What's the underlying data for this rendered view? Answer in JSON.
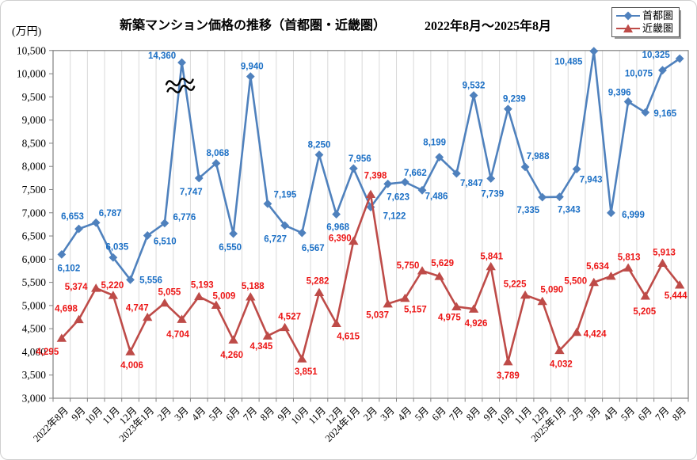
{
  "header": {
    "unit_label": "(万円)",
    "title": "新築マンション価格の推移（首都圏・近畿圏）",
    "period": "2022年8月～2025年8月"
  },
  "legend": {
    "position": "top-right",
    "items": [
      {
        "id": "shutoken",
        "label": "首都圏",
        "marker": "diamond",
        "color": "#4F81BD"
      },
      {
        "id": "kinkiken",
        "label": "近畿圏",
        "marker": "triangle",
        "color": "#BE4B48"
      }
    ]
  },
  "chart_data": {
    "type": "line",
    "title": "新築マンション価格の推移（首都圏・近畿圏）",
    "subtitle": "2022年8月～2025年8月",
    "unit": "万円",
    "categories": [
      "2022年8月",
      "9月",
      "10月",
      "11月",
      "12月",
      "2023年1月",
      "2月",
      "3月",
      "4月",
      "5月",
      "6月",
      "7月",
      "8月",
      "9月",
      "10月",
      "11月",
      "12月",
      "2024年1月",
      "2月",
      "3月",
      "4月",
      "5月",
      "6月",
      "7月",
      "8月",
      "9月",
      "10月",
      "11月",
      "12月",
      "2025年1月",
      "2月",
      "3月",
      "4月",
      "5月",
      "6月",
      "7月",
      "8月"
    ],
    "series": [
      {
        "id": "shutoken",
        "name": "首都圏",
        "marker": "diamond",
        "line_color": "#4F81BD",
        "label_color": "#1B6FC5",
        "values": [
          6102,
          6653,
          6787,
          6035,
          5556,
          6510,
          6776,
          14360,
          7747,
          8068,
          6550,
          9940,
          7195,
          6727,
          6567,
          8250,
          6968,
          7956,
          7122,
          7623,
          7662,
          7486,
          8199,
          7847,
          9532,
          7739,
          9239,
          7988,
          7335,
          7343,
          7943,
          10485,
          6999,
          9396,
          9165,
          10075,
          10325
        ]
      },
      {
        "id": "kinkiken",
        "name": "近畿圏",
        "marker": "triangle",
        "line_color": "#BE4B48",
        "label_color": "#EC1515",
        "values": [
          4295,
          4698,
          5374,
          5220,
          4006,
          4747,
          5055,
          4704,
          5193,
          5009,
          4260,
          5188,
          4345,
          4527,
          3851,
          5282,
          4615,
          6390,
          7398,
          5037,
          5157,
          5750,
          5629,
          4975,
          4926,
          5841,
          3789,
          5225,
          5090,
          4032,
          4424,
          5500,
          5634,
          5813,
          5205,
          5913,
          5444
        ]
      }
    ],
    "y_axis": {
      "min": 3000,
      "max": 10500,
      "step": 500,
      "tick_format": "#,##0"
    },
    "axis_break": {
      "series_index": 0,
      "point_index": 7,
      "true_value": 14360,
      "plotted_value": 10240,
      "symbol": "double-wavy-line"
    },
    "grid": {
      "vertical": true,
      "horizontal": false
    },
    "colors": {
      "gridline": "#d9d9d9",
      "axis": "#808080",
      "tick_text": "#000000"
    },
    "legend_position": "top-right",
    "label_offsets": {
      "shutoken": [
        [
          9,
          17
        ],
        [
          -8,
          -16
        ],
        [
          18,
          -12
        ],
        [
          5,
          -14
        ],
        [
          26,
          0
        ],
        [
          22,
          7
        ],
        [
          25,
          -8
        ],
        [
          -25,
          -9
        ],
        [
          -10,
          17
        ],
        [
          2,
          -13
        ],
        [
          -4,
          17
        ],
        [
          2,
          -13
        ],
        [
          22,
          -12
        ],
        [
          -12,
          17
        ],
        [
          14,
          19
        ],
        [
          0,
          -13
        ],
        [
          2,
          16
        ],
        [
          8,
          -13
        ],
        [
          30,
          11
        ],
        [
          13,
          16
        ],
        [
          13,
          -12
        ],
        [
          18,
          7
        ],
        [
          -6,
          -19
        ],
        [
          19,
          12
        ],
        [
          0,
          -13
        ],
        [
          2,
          19
        ],
        [
          8,
          -13
        ],
        [
          16,
          -14
        ],
        [
          -18,
          16
        ],
        [
          12,
          16
        ],
        [
          18,
          13
        ],
        [
          -32,
          13
        ],
        [
          28,
          2
        ],
        [
          -11,
          -12
        ],
        [
          25,
          1
        ],
        [
          -30,
          4
        ],
        [
          -30,
          -5
        ]
      ],
      "kinkiken": [
        [
          -18,
          17
        ],
        [
          -16,
          -14
        ],
        [
          -25,
          -2
        ],
        [
          -1,
          -13
        ],
        [
          2,
          17
        ],
        [
          -13,
          -12
        ],
        [
          6,
          -14
        ],
        [
          -5,
          19
        ],
        [
          4,
          -15
        ],
        [
          10,
          -12
        ],
        [
          -2,
          19
        ],
        [
          3,
          -14
        ],
        [
          -8,
          13
        ],
        [
          6,
          -14
        ],
        [
          5,
          16
        ],
        [
          -2,
          -15
        ],
        [
          15,
          16
        ],
        [
          -17,
          -4
        ],
        [
          6,
          -24
        ],
        [
          -13,
          14
        ],
        [
          13,
          14
        ],
        [
          -18,
          -7
        ],
        [
          4,
          -17
        ],
        [
          -9,
          13
        ],
        [
          3,
          18
        ],
        [
          1,
          -13
        ],
        [
          0,
          17
        ],
        [
          -13,
          -14
        ],
        [
          12,
          -15
        ],
        [
          2,
          17
        ],
        [
          23,
          2
        ],
        [
          -23,
          -2
        ],
        [
          -17,
          -13
        ],
        [
          1,
          -14
        ],
        [
          -1,
          19
        ],
        [
          2,
          -14
        ],
        [
          -5,
          13
        ]
      ]
    }
  }
}
